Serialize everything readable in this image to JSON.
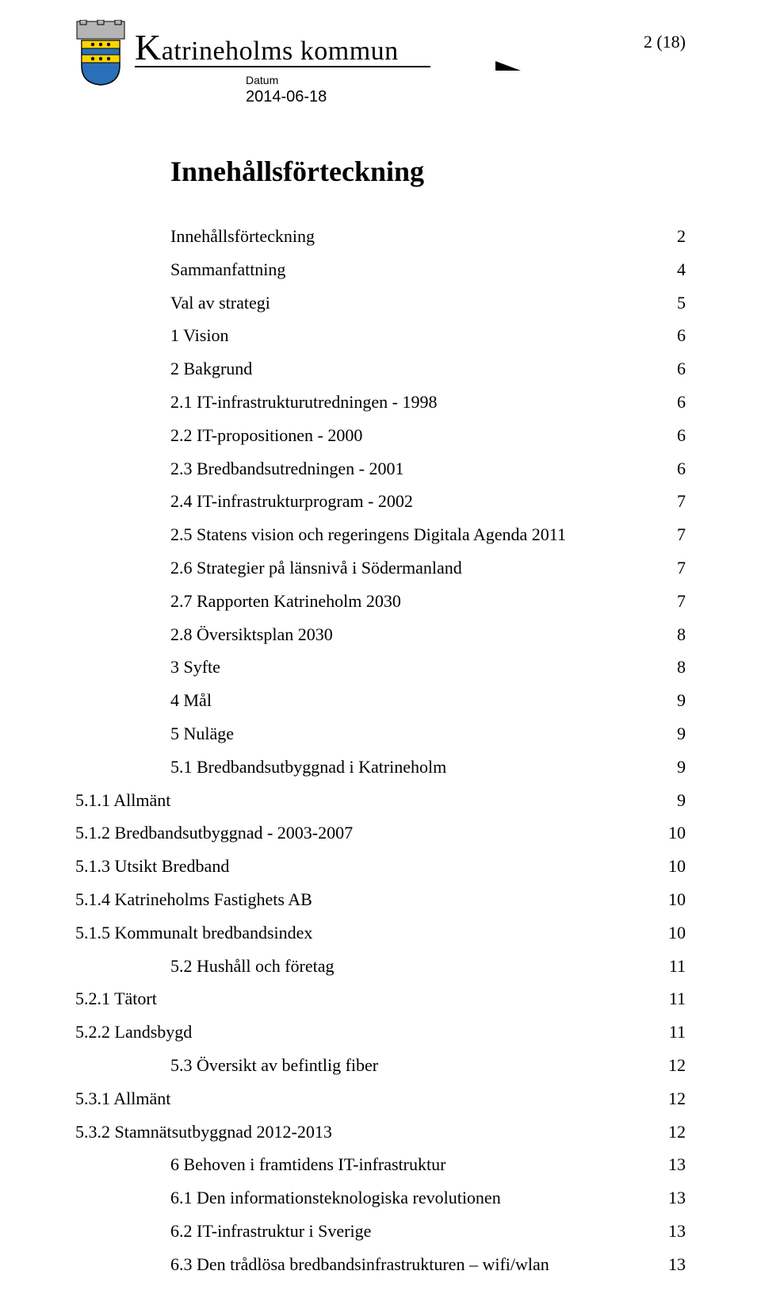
{
  "header": {
    "org_prefix": "K",
    "org_rest": "atrineholms kommun",
    "page_number": "2 (18)",
    "datum_label": "Datum",
    "datum_value": "2014-06-18",
    "crest_colors": {
      "wall": "#b5b5b5",
      "shield_top": "#fcd400",
      "shield_bottom": "#2a6fb7",
      "outline": "#000000"
    }
  },
  "title": "Innehållsförteckning",
  "toc": [
    {
      "label": "Innehållsförteckning",
      "page": "2",
      "indent": 0,
      "outdent": false
    },
    {
      "label": "Sammanfattning",
      "page": "4",
      "indent": 0,
      "outdent": false
    },
    {
      "label": "Val av strategi",
      "page": "5",
      "indent": 0,
      "outdent": false
    },
    {
      "label": "1 Vision",
      "page": "6",
      "indent": 0,
      "outdent": false
    },
    {
      "label": "2 Bakgrund",
      "page": "6",
      "indent": 0,
      "outdent": false
    },
    {
      "label": "2.1 IT-infrastrukturutredningen - 1998",
      "page": "6",
      "indent": 0,
      "outdent": false
    },
    {
      "label": "2.2 IT-propositionen - 2000",
      "page": "6",
      "indent": 0,
      "outdent": false
    },
    {
      "label": "2.3 Bredbandsutredningen - 2001",
      "page": "6",
      "indent": 0,
      "outdent": false
    },
    {
      "label": "2.4 IT-infrastrukturprogram - 2002",
      "page": "7",
      "indent": 0,
      "outdent": false
    },
    {
      "label": "2.5 Statens vision och regeringens Digitala Agenda 2011",
      "page": "7",
      "indent": 0,
      "outdent": false
    },
    {
      "label": "2.6 Strategier på länsnivå i Södermanland",
      "page": "7",
      "indent": 0,
      "outdent": false
    },
    {
      "label": "2.7 Rapporten Katrineholm 2030",
      "page": "7",
      "indent": 0,
      "outdent": false
    },
    {
      "label": "2.8 Översiktsplan 2030",
      "page": "8",
      "indent": 0,
      "outdent": false
    },
    {
      "label": "3 Syfte",
      "page": "8",
      "indent": 0,
      "outdent": false
    },
    {
      "label": "4 Mål",
      "page": "9",
      "indent": 0,
      "outdent": false
    },
    {
      "label": "5 Nuläge",
      "page": "9",
      "indent": 0,
      "outdent": false
    },
    {
      "label": "5.1 Bredbandsutbyggnad i Katrineholm",
      "page": "9",
      "indent": 0,
      "outdent": false
    },
    {
      "label": "5.1.1 Allmänt",
      "page": "9",
      "indent": 0,
      "outdent": true
    },
    {
      "label": "5.1.2 Bredbandsutbyggnad - 2003-2007",
      "page": "10",
      "indent": 0,
      "outdent": true
    },
    {
      "label": "5.1.3 Utsikt Bredband",
      "page": "10",
      "indent": 0,
      "outdent": true
    },
    {
      "label": "5.1.4 Katrineholms Fastighets AB",
      "page": "10",
      "indent": 0,
      "outdent": true
    },
    {
      "label": "5.1.5 Kommunalt bredbandsindex",
      "page": "10",
      "indent": 0,
      "outdent": true
    },
    {
      "label": "5.2 Hushåll och företag",
      "page": "11",
      "indent": 0,
      "outdent": false
    },
    {
      "label": "5.2.1 Tätort",
      "page": "11",
      "indent": 0,
      "outdent": true
    },
    {
      "label": "5.2.2 Landsbygd",
      "page": "11",
      "indent": 0,
      "outdent": true
    },
    {
      "label": "5.3 Översikt av befintlig fiber",
      "page": "12",
      "indent": 0,
      "outdent": false
    },
    {
      "label": "5.3.1 Allmänt",
      "page": "12",
      "indent": 0,
      "outdent": true
    },
    {
      "label": "5.3.2 Stamnätsutbyggnad 2012-2013",
      "page": "12",
      "indent": 0,
      "outdent": true
    },
    {
      "label": "6 Behoven i framtidens IT-infrastruktur",
      "page": "13",
      "indent": 0,
      "outdent": false
    },
    {
      "label": "6.1 Den informationsteknologiska revolutionen",
      "page": "13",
      "indent": 0,
      "outdent": false
    },
    {
      "label": "6.2 IT-infrastruktur i Sverige",
      "page": "13",
      "indent": 0,
      "outdent": false
    },
    {
      "label": "6.3 Den trådlösa bredbandsinfrastrukturen – wifi/wlan",
      "page": "13",
      "indent": 0,
      "outdent": false
    }
  ]
}
